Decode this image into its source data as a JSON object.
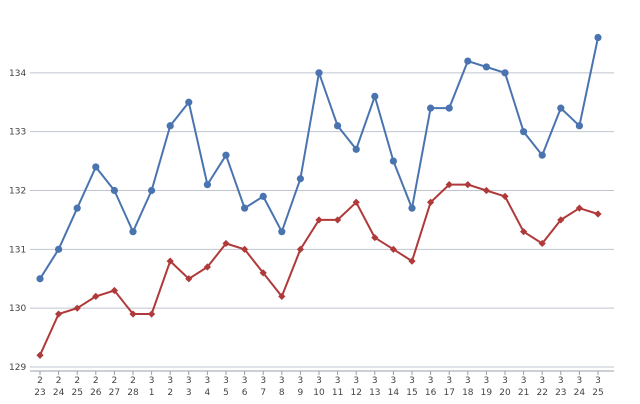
{
  "chart_data": {
    "type": "line",
    "title": "",
    "xlabel": "",
    "ylabel": "",
    "ylim": [
      129,
      135
    ],
    "yticks": [
      129,
      130,
      131,
      132,
      133,
      134
    ],
    "grid": true,
    "legend": "none",
    "categories": [
      [
        "2",
        "23"
      ],
      [
        "2",
        "24"
      ],
      [
        "2",
        "25"
      ],
      [
        "2",
        "26"
      ],
      [
        "2",
        "27"
      ],
      [
        "2",
        "28"
      ],
      [
        "3",
        "1"
      ],
      [
        "3",
        "2"
      ],
      [
        "3",
        "3"
      ],
      [
        "3",
        "4"
      ],
      [
        "3",
        "5"
      ],
      [
        "3",
        "6"
      ],
      [
        "3",
        "7"
      ],
      [
        "3",
        "8"
      ],
      [
        "3",
        "9"
      ],
      [
        "3",
        "10"
      ],
      [
        "3",
        "11"
      ],
      [
        "3",
        "12"
      ],
      [
        "3",
        "13"
      ],
      [
        "3",
        "14"
      ],
      [
        "3",
        "15"
      ],
      [
        "3",
        "16"
      ],
      [
        "3",
        "17"
      ],
      [
        "3",
        "18"
      ],
      [
        "3",
        "19"
      ],
      [
        "3",
        "20"
      ],
      [
        "3",
        "21"
      ],
      [
        "3",
        "22"
      ],
      [
        "3",
        "23"
      ],
      [
        "3",
        "24"
      ],
      [
        "3",
        "25"
      ]
    ],
    "series": [
      {
        "color": "#4a74b0",
        "marker": "circle",
        "values": [
          130.5,
          131.0,
          131.7,
          132.4,
          132.0,
          131.3,
          132.0,
          133.1,
          133.5,
          132.1,
          132.6,
          131.7,
          131.9,
          131.3,
          132.2,
          134.0,
          133.1,
          132.7,
          133.6,
          132.5,
          131.7,
          133.4,
          133.4,
          134.2,
          134.1,
          134.0,
          133.0,
          132.6,
          133.4,
          133.1,
          134.6
        ]
      },
      {
        "color": "#b0393a",
        "marker": "diamond",
        "values": [
          129.2,
          129.9,
          130.0,
          130.2,
          130.3,
          129.9,
          129.9,
          130.8,
          130.5,
          130.7,
          131.1,
          131.0,
          130.6,
          130.2,
          131.0,
          131.5,
          131.5,
          131.8,
          131.2,
          131.0,
          130.8,
          131.8,
          132.1,
          132.1,
          132.0,
          131.9,
          131.3,
          131.1,
          131.5,
          131.7,
          131.6
        ]
      }
    ]
  }
}
